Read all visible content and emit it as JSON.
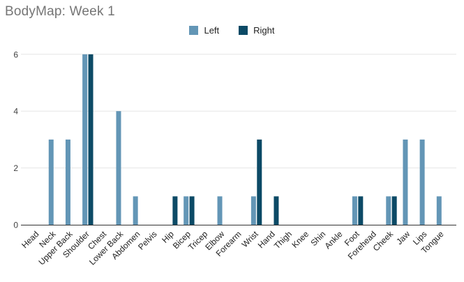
{
  "title": "BodyMap: Week 1",
  "legend": {
    "items": [
      {
        "label": "Left",
        "color": "#6396b6"
      },
      {
        "label": "Right",
        "color": "#0c4a66"
      }
    ]
  },
  "chart_data": {
    "type": "bar",
    "title": "BodyMap: Week 1",
    "categories": [
      "Head",
      "Neck",
      "Upper Back",
      "Shoulder",
      "Chest",
      "Lower Back",
      "Abdomen",
      "Pelvis",
      "Hip",
      "Bicep",
      "Tricep",
      "Elbow",
      "Forearm",
      "Wrist",
      "Hand",
      "Thigh",
      "Knee",
      "Shin",
      "Ankle",
      "Foot",
      "Forehead",
      "Cheek",
      "Jaw",
      "Lips",
      "Tongue"
    ],
    "series": [
      {
        "name": "Left",
        "color": "#6396b6",
        "values": [
          0,
          3,
          3,
          6,
          0,
          4,
          1,
          0,
          0,
          1,
          0,
          1,
          0,
          1,
          0,
          0,
          0,
          0,
          0,
          1,
          0,
          1,
          3,
          3,
          1
        ]
      },
      {
        "name": "Right",
        "color": "#0c4a66",
        "values": [
          0,
          0,
          0,
          6,
          0,
          0,
          0,
          0,
          1,
          1,
          0,
          0,
          0,
          3,
          1,
          0,
          0,
          0,
          0,
          1,
          0,
          1,
          0,
          0,
          0
        ]
      }
    ],
    "xlabel": "",
    "ylabel": "",
    "ylim": [
      0,
      6
    ],
    "yticks": [
      0,
      2,
      4,
      6
    ],
    "grid": true,
    "legend_position": "top",
    "bar_label_rotation_deg": -45
  }
}
